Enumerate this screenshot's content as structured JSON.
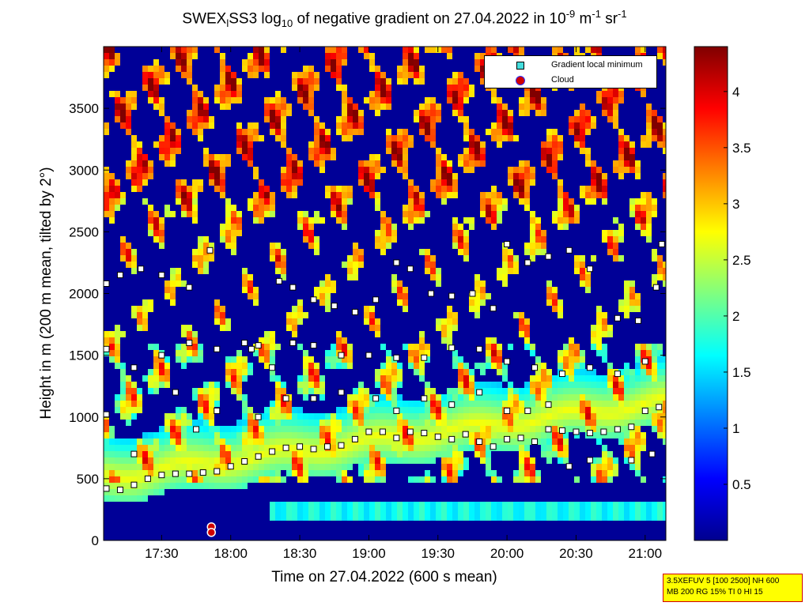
{
  "title": {
    "part1": "SWEX",
    "sub1": "l",
    "part2": "SS3 log",
    "sub2": "10",
    "part3": " of negative gradient on 27.04.2022 in 10",
    "sup1": "-9",
    "part4": " m",
    "sup2": "-1",
    "part5": " sr",
    "sup3": "-1"
  },
  "legend": {
    "entries": [
      {
        "label": "Gradient local minimum",
        "color": "#44dddd",
        "marker": "square"
      },
      {
        "label": "Cloud",
        "color": "#d00000",
        "marker": "circle"
      }
    ]
  },
  "info_box": {
    "line1": "3.5XEFUV 5 [100 2500] NH 600",
    "line2": "MB 200 RG 15% TI 0 HI 15"
  },
  "chart_data": {
    "type": "heatmap",
    "title": "SWEXlSS3 log10 of negative gradient on 27.04.2022 in 10-9 m-1 sr-1",
    "xlabel": "Time on 27.04.2022 (600 s mean)",
    "ylabel": "Height in m (200 m mean, tilted by 2°)",
    "x_ticks": [
      "17:30",
      "18:00",
      "18:30",
      "19:00",
      "19:30",
      "20:00",
      "20:30",
      "21:00"
    ],
    "x_tick_hours": [
      17.5,
      18.0,
      18.5,
      19.0,
      19.5,
      20.0,
      20.5,
      21.0
    ],
    "xlim_hours": [
      17.08,
      21.15
    ],
    "y_ticks": [
      0,
      500,
      1000,
      1500,
      2000,
      2500,
      3000,
      3500
    ],
    "ylim": [
      0,
      4000
    ],
    "colorbar": {
      "ticks": [
        "0.5",
        "1",
        "1.5",
        "2",
        "2.5",
        "3",
        "3.5",
        "4"
      ],
      "tick_values": [
        0.5,
        1,
        1.5,
        2,
        2.5,
        3,
        3.5,
        4
      ],
      "range": [
        0,
        4.4
      ],
      "colormap": "jet"
    },
    "layers": [
      {
        "name": "Gradient local minimum",
        "marker": "square",
        "color": "#44dddd",
        "points": [
          [
            17.1,
            420
          ],
          [
            17.2,
            410
          ],
          [
            17.3,
            450
          ],
          [
            17.4,
            500
          ],
          [
            17.5,
            530
          ],
          [
            17.6,
            540
          ],
          [
            17.7,
            540
          ],
          [
            17.8,
            550
          ],
          [
            17.9,
            560
          ],
          [
            18.0,
            600
          ],
          [
            18.1,
            640
          ],
          [
            18.2,
            680
          ],
          [
            18.3,
            720
          ],
          [
            18.4,
            750
          ],
          [
            18.5,
            760
          ],
          [
            18.6,
            740
          ],
          [
            18.7,
            760
          ],
          [
            18.8,
            770
          ],
          [
            18.9,
            820
          ],
          [
            19.0,
            880
          ],
          [
            19.1,
            880
          ],
          [
            19.2,
            830
          ],
          [
            19.3,
            880
          ],
          [
            19.4,
            870
          ],
          [
            19.5,
            840
          ],
          [
            19.6,
            820
          ],
          [
            19.7,
            860
          ],
          [
            19.8,
            800
          ],
          [
            19.9,
            760
          ],
          [
            20.0,
            820
          ],
          [
            20.1,
            830
          ],
          [
            20.2,
            800
          ],
          [
            20.3,
            900
          ],
          [
            20.4,
            890
          ],
          [
            20.5,
            880
          ],
          [
            20.6,
            870
          ],
          [
            20.7,
            880
          ],
          [
            20.8,
            900
          ],
          [
            20.9,
            920
          ],
          [
            21.0,
            1050
          ],
          [
            21.1,
            1080
          ],
          [
            17.1,
            2080
          ],
          [
            17.2,
            2150
          ],
          [
            17.35,
            2200
          ],
          [
            17.5,
            2150
          ],
          [
            17.7,
            2050
          ],
          [
            17.85,
            2350
          ],
          [
            18.1,
            1600
          ],
          [
            18.2,
            1580
          ],
          [
            18.35,
            2100
          ],
          [
            18.45,
            2050
          ],
          [
            18.6,
            1950
          ],
          [
            18.75,
            1900
          ],
          [
            18.9,
            1850
          ],
          [
            19.05,
            1950
          ],
          [
            19.2,
            2250
          ],
          [
            19.3,
            2200
          ],
          [
            19.45,
            2000
          ],
          [
            19.6,
            1980
          ],
          [
            19.75,
            2000
          ],
          [
            19.9,
            1880
          ],
          [
            20.0,
            2400
          ],
          [
            20.15,
            2250
          ],
          [
            20.3,
            2300
          ],
          [
            20.45,
            2350
          ],
          [
            20.6,
            2200
          ],
          [
            20.8,
            1800
          ],
          [
            20.95,
            1780
          ],
          [
            21.08,
            2050
          ],
          [
            21.12,
            2400
          ],
          [
            17.1,
            1550
          ],
          [
            17.3,
            1400
          ],
          [
            17.5,
            1500
          ],
          [
            17.7,
            1600
          ],
          [
            17.9,
            1550
          ],
          [
            18.15,
            1550
          ],
          [
            18.3,
            1400
          ],
          [
            18.45,
            1600
          ],
          [
            18.6,
            1580
          ],
          [
            18.8,
            1500
          ],
          [
            19.0,
            1500
          ],
          [
            19.2,
            1480
          ],
          [
            19.4,
            1480
          ],
          [
            19.6,
            1560
          ],
          [
            19.8,
            1550
          ],
          [
            20.0,
            1450
          ],
          [
            20.2,
            1400
          ],
          [
            20.4,
            1350
          ],
          [
            20.6,
            1400
          ],
          [
            20.8,
            1350
          ],
          [
            21.0,
            1450
          ],
          [
            17.1,
            1020
          ],
          [
            17.3,
            700
          ],
          [
            17.6,
            1200
          ],
          [
            17.75,
            900
          ],
          [
            17.9,
            1050
          ],
          [
            18.2,
            1000
          ],
          [
            18.4,
            1150
          ],
          [
            18.6,
            1150
          ],
          [
            18.8,
            1200
          ],
          [
            19.05,
            1150
          ],
          [
            19.2,
            1050
          ],
          [
            19.4,
            1150
          ],
          [
            19.6,
            1100
          ],
          [
            19.8,
            1200
          ],
          [
            20.0,
            1050
          ],
          [
            20.15,
            1050
          ],
          [
            20.3,
            1100
          ],
          [
            20.45,
            600
          ],
          [
            20.6,
            650
          ],
          [
            20.9,
            650
          ],
          [
            21.05,
            700
          ]
        ]
      },
      {
        "name": "Cloud",
        "marker": "circle",
        "color": "#d00000",
        "points": [
          [
            17.86,
            110
          ],
          [
            17.86,
            65
          ]
        ]
      }
    ]
  }
}
